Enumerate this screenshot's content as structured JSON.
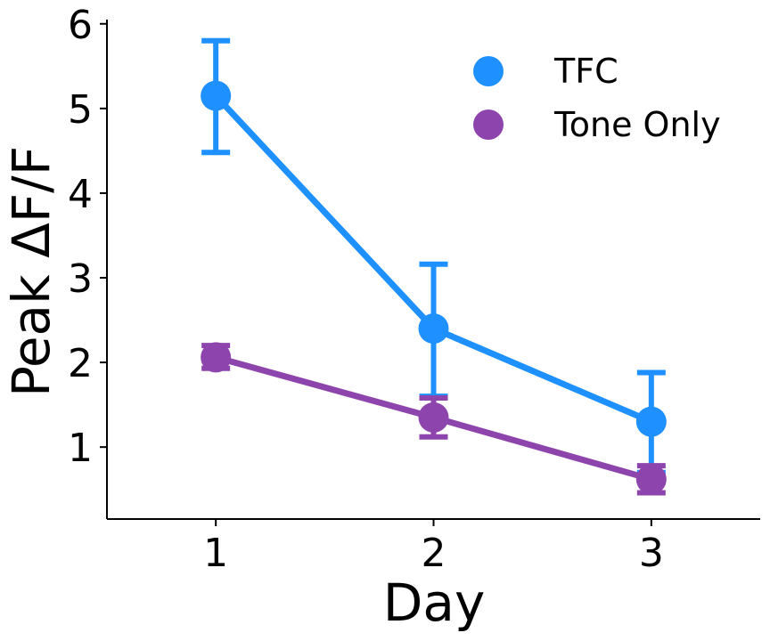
{
  "chart_data": {
    "type": "line",
    "title": "",
    "xlabel": "Day",
    "ylabel": "Peak ΔF/F",
    "categories": [
      "1",
      "2",
      "3"
    ],
    "x": [
      1,
      2,
      3
    ],
    "xlim": [
      0.5,
      3.5
    ],
    "ylim": [
      0.15,
      6.05
    ],
    "yticks": [
      "1",
      "2",
      "3",
      "4",
      "5",
      "6"
    ],
    "grid": false,
    "legend_position": "top-right",
    "series": [
      {
        "name": "TFC",
        "color": "#1E90FF",
        "values": [
          5.15,
          2.4,
          1.3
        ],
        "err_low": [
          4.48,
          1.6,
          0.7
        ],
        "err_high": [
          5.8,
          3.16,
          1.88
        ]
      },
      {
        "name": "Tone Only",
        "color": "#8E44AD",
        "values": [
          2.06,
          1.35,
          0.62
        ],
        "err_low": [
          1.93,
          1.12,
          0.46
        ],
        "err_high": [
          2.2,
          1.58,
          0.78
        ]
      }
    ]
  }
}
